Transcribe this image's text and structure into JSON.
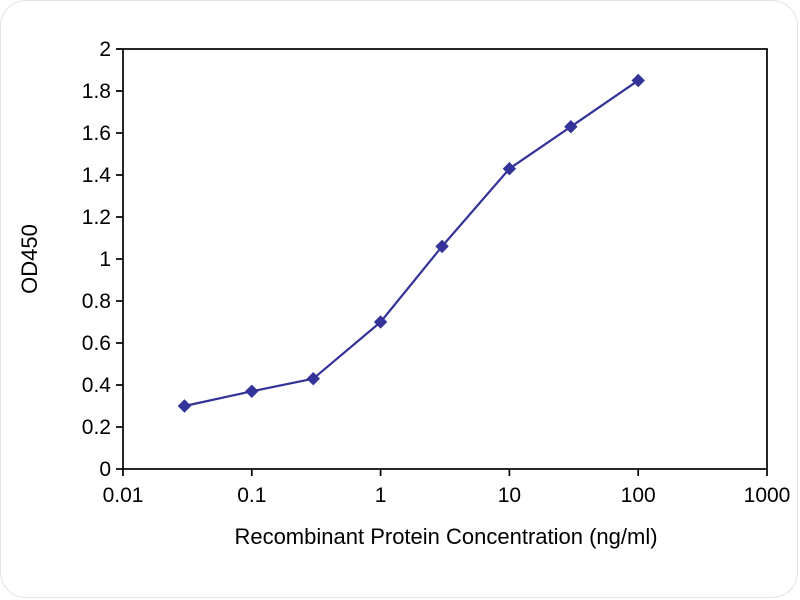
{
  "chart_data": {
    "type": "line",
    "title": "",
    "xlabel": "Recombinant Protein Concentration (ng/ml)",
    "ylabel": "OD450",
    "x_scale": "log",
    "xlim": [
      0.01,
      1000
    ],
    "ylim": [
      0,
      2
    ],
    "x_ticks": [
      0.01,
      0.1,
      1,
      10,
      100,
      1000
    ],
    "x_tick_labels": [
      "0.01",
      "0.1",
      "1",
      "10",
      "100",
      "1000"
    ],
    "y_ticks": [
      0,
      0.2,
      0.4,
      0.6,
      0.8,
      1,
      1.2,
      1.4,
      1.6,
      1.8,
      2
    ],
    "y_tick_labels": [
      "0",
      "0.2",
      "0.4",
      "0.6",
      "0.8",
      "1",
      "1.2",
      "1.4",
      "1.6",
      "1.8",
      "2"
    ],
    "grid": false,
    "legend": false,
    "series": [
      {
        "name": "OD450",
        "x": [
          0.03,
          0.1,
          0.3,
          1,
          3,
          10,
          30,
          100
        ],
        "y": [
          0.3,
          0.37,
          0.43,
          0.7,
          1.06,
          1.43,
          1.63,
          1.85
        ],
        "color": "#333399",
        "marker": "diamond"
      }
    ]
  },
  "colors": {
    "line": "#333399",
    "axis": "#000000",
    "background": "#ffffff"
  }
}
